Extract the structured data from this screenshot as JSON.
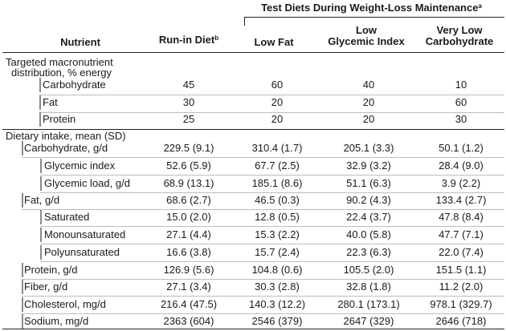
{
  "header": {
    "group_title": "Test Diets During Weight-Loss Maintenance",
    "group_sup": "a",
    "col_nutrient": "Nutrient",
    "col_runin": "Run-in Diet",
    "col_runin_sup": "b",
    "col_lowfat": "Low Fat",
    "col_lgi_1": "Low",
    "col_lgi_2": "Glycemic Index",
    "col_vlc_1": "Very Low",
    "col_vlc_2": "Carbohydrate"
  },
  "section1": {
    "title_1": "Targeted macronutrient",
    "title_2": "distribution, % energy",
    "rows": [
      {
        "label": "Carbohydrate",
        "v": [
          "45",
          "60",
          "40",
          "10"
        ]
      },
      {
        "label": "Fat",
        "v": [
          "30",
          "20",
          "20",
          "60"
        ]
      },
      {
        "label": "Protein",
        "v": [
          "25",
          "20",
          "20",
          "30"
        ]
      }
    ]
  },
  "section2": {
    "title": "Dietary intake, mean (SD)",
    "rows": [
      {
        "label": "Carbohydrate, g/d",
        "v": [
          "229.5 (9.1)",
          "310.4 (1.7)",
          "205.1 (3.3)",
          "50.1 (1.2)"
        ]
      },
      {
        "label": "Glycemic index",
        "v": [
          "52.6 (5.9)",
          "67.7 (2.5)",
          "32.9 (3.2)",
          "28.4 (9.0)"
        ]
      },
      {
        "label": "Glycemic load, g/d",
        "v": [
          "68.9 (13.1)",
          "185.1 (8.6)",
          "51.1 (6.3)",
          "3.9 (2.2)"
        ]
      },
      {
        "label": "Fat, g/d",
        "v": [
          "68.6 (2.7)",
          "46.5 (0.3)",
          "90.2 (4.3)",
          "133.4 (2.7)"
        ]
      },
      {
        "label": "Saturated",
        "v": [
          "15.0 (2.0)",
          "12.8 (0.5)",
          "22.4 (3.7)",
          "47.8 (8.4)"
        ]
      },
      {
        "label": "Monounsaturated",
        "v": [
          "27.1 (4.4)",
          "15.3 (2.2)",
          "40.0 (5.8)",
          "47.7 (7.1)"
        ]
      },
      {
        "label": "Polyunsaturated",
        "v": [
          "16.6 (3.8)",
          "15.7 (2.4)",
          "22.3 (6.3)",
          "22.0 (7.4)"
        ]
      },
      {
        "label": "Protein, g/d",
        "v": [
          "126.9 (5.6)",
          "104.8 (0.6)",
          "105.5 (2.0)",
          "151.5 (1.1)"
        ]
      },
      {
        "label": "Fiber, g/d",
        "v": [
          "27.1 (3.4)",
          "30.3 (2.8)",
          "32.8 (1.8)",
          "11.2 (2.0)"
        ]
      },
      {
        "label": "Cholesterol, mg/d",
        "v": [
          "216.4 (47.5)",
          "140.3 (12.2)",
          "280.1 (173.1)",
          "978.1 (329.7)"
        ]
      },
      {
        "label": "Sodium, mg/d",
        "v": [
          "2363 (604)",
          "2546 (379)",
          "2647 (329)",
          "2646 (718)"
        ]
      }
    ]
  }
}
